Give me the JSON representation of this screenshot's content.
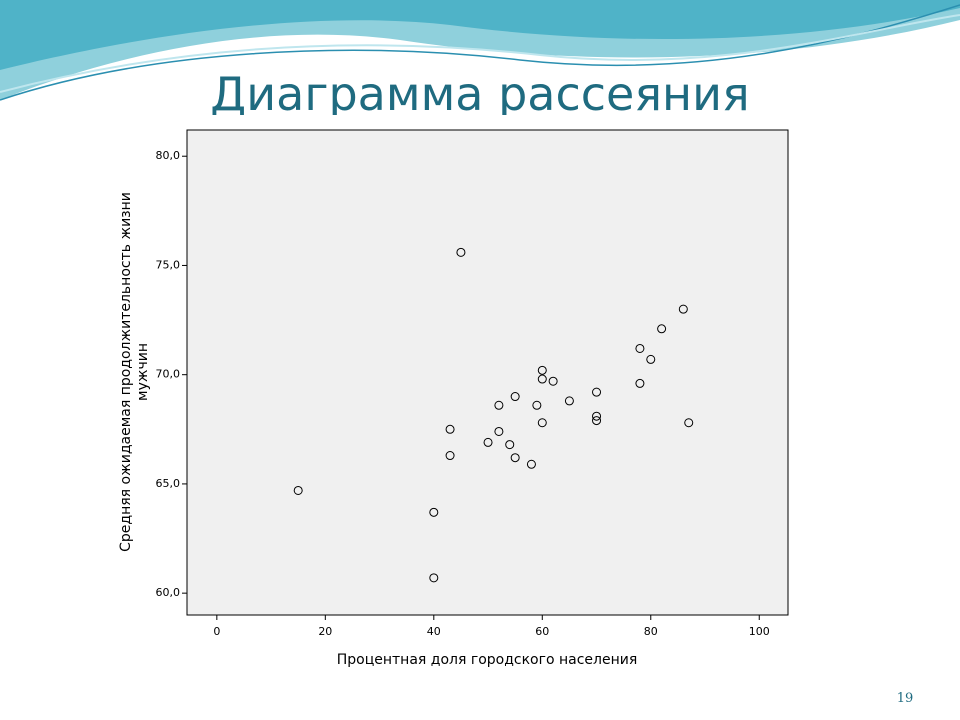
{
  "title": "Диаграмма рассеяния",
  "slide_number": "19",
  "chart_data": {
    "type": "scatter",
    "xlabel": "Процентная доля городского населения",
    "ylabel": [
      "Средняя ожидаемая продолжительность жизни",
      "мужчин"
    ],
    "color": "#000000",
    "x": [
      15,
      45,
      40,
      40,
      43,
      43,
      50,
      52,
      52,
      54,
      55,
      55,
      58,
      59,
      60,
      60,
      62,
      60,
      65,
      70,
      70,
      70,
      78,
      78,
      80,
      82,
      86,
      87
    ],
    "values": [
      64.7,
      75.6,
      63.7,
      60.7,
      67.5,
      66.3,
      66.9,
      68.6,
      67.4,
      66.8,
      69.0,
      66.2,
      65.9,
      68.6,
      70.2,
      69.8,
      69.7,
      67.8,
      68.8,
      69.2,
      68.1,
      67.9,
      71.2,
      69.6,
      70.7,
      72.1,
      73.0,
      67.8
    ],
    "xlim": [
      -5.5,
      105.3
    ],
    "ylim": [
      59.0,
      81.2
    ],
    "xticks": [
      0,
      20,
      40,
      60,
      80,
      100
    ],
    "yticks": [
      {
        "value": 60,
        "label": "60,0"
      },
      {
        "value": 65,
        "label": "65,0"
      },
      {
        "value": 70,
        "label": "70,0"
      },
      {
        "value": 75,
        "label": "75,0"
      },
      {
        "value": 80,
        "label": "80,0"
      }
    ]
  }
}
